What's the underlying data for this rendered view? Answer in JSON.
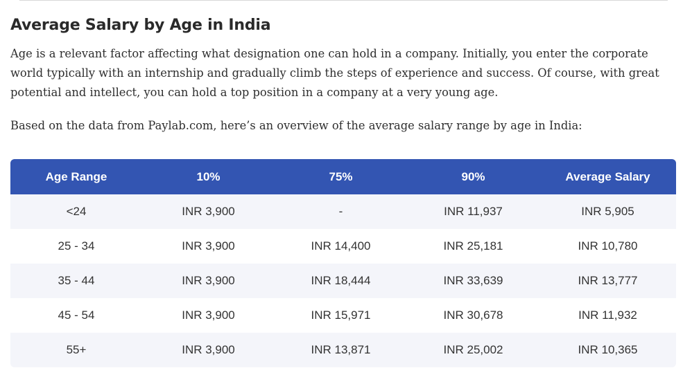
{
  "article": {
    "heading": "Average Salary by Age in India",
    "paragraph_1": "Age is a relevant factor affecting what designation one can hold in a company. Initially, you enter the corporate world typically with an internship and gradually climb the steps of experience and success. Of course, with great potential and intellect, you can hold a top position in a company at a very young age.",
    "paragraph_2": "Based on the data from Paylab.com, here’s an overview of the average salary range by age in India:"
  },
  "table": {
    "header_bg": "#3355b2",
    "stripe_bg": "#f4f5fa",
    "headers": [
      "Age Range",
      "10%",
      "75%",
      "90%",
      "Average Salary"
    ],
    "rows": [
      [
        "<24",
        "INR 3,900",
        "-",
        "INR 11,937",
        "INR 5,905"
      ],
      [
        "25 - 34",
        "INR 3,900",
        "INR 14,400",
        "INR 25,181",
        "INR 10,780"
      ],
      [
        "35 - 44",
        "INR 3,900",
        "INR 18,444",
        "INR 33,639",
        "INR 13,777"
      ],
      [
        "45 - 54",
        "INR 3,900",
        "INR 15,971",
        "INR 30,678",
        "INR 11,932"
      ],
      [
        "55+",
        "INR 3,900",
        "INR 13,871",
        "INR 25,002",
        "INR 10,365"
      ]
    ]
  }
}
